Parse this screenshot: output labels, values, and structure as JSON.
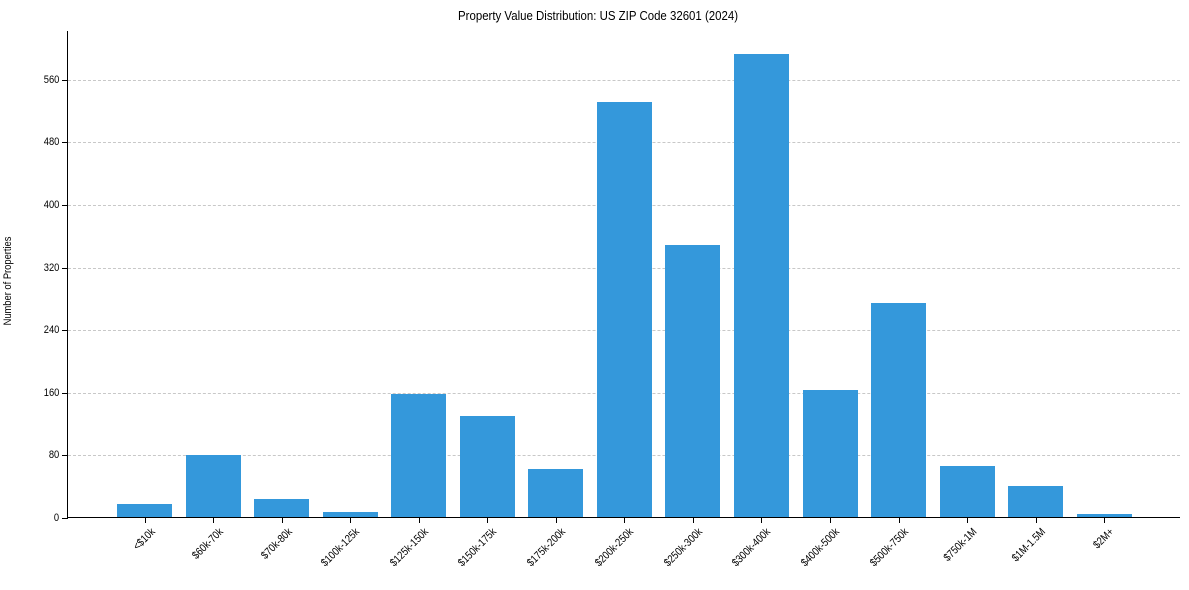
{
  "chart_data": {
    "type": "bar",
    "title": "Property Value Distribution: US ZIP Code 32601 (2024)",
    "xlabel": "",
    "ylabel": "Number of Properties",
    "categories": [
      "<$10k",
      "$60k-70k",
      "$70k-80k",
      "$100k-125k",
      "$125k-150k",
      "$150k-175k",
      "$175k-200k",
      "$200k-250k",
      "$250k-300k",
      "$300k-400k",
      "$400k-500k",
      "$500k-750k",
      "$750k-1M",
      "$1M-1.5M",
      "$2M+"
    ],
    "values": [
      18,
      80,
      24,
      8,
      159,
      130,
      63,
      532,
      349,
      593,
      164,
      275,
      66,
      41,
      5
    ],
    "yticks": [
      0,
      80,
      160,
      240,
      320,
      400,
      480,
      560
    ],
    "ylim": [
      0,
      623
    ],
    "grid": {
      "y": true,
      "style": "dashed"
    },
    "bar_color": "#3498db",
    "x_tick_rotation": 45
  }
}
